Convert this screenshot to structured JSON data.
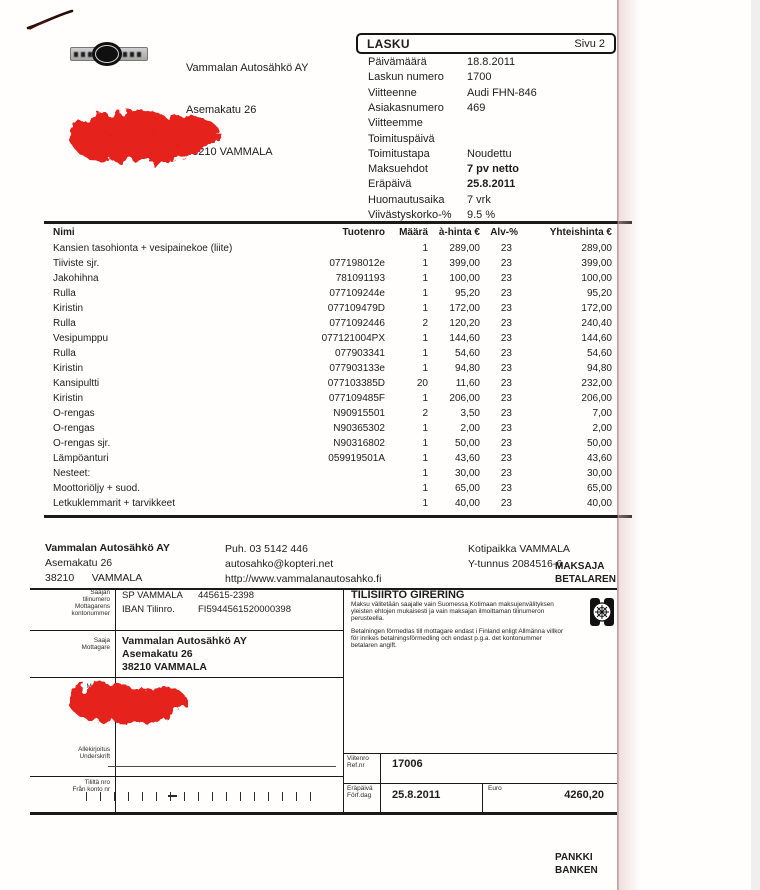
{
  "header": {
    "title": "LASKU",
    "page": "Sivu 2"
  },
  "sender": {
    "name": "Vammalan Autosähkö AY",
    "street": "Asemakatu 26",
    "city": "38210 VAMMALA"
  },
  "invoice_meta": [
    {
      "label": "Päivämäärä",
      "value": "18.8.2011",
      "bold": false
    },
    {
      "label": "Laskun numero",
      "value": "1700",
      "bold": false
    },
    {
      "label": "Viitteenne",
      "value": "Audi FHN-846",
      "bold": false
    },
    {
      "label": "Asiakasnumero",
      "value": "469",
      "bold": false
    },
    {
      "label": "Viitteemme",
      "value": "",
      "bold": false
    },
    {
      "label": "Toimituspäivä",
      "value": "",
      "bold": false
    },
    {
      "label": "Toimitustapa",
      "value": "Noudettu",
      "bold": false
    },
    {
      "label": "Maksuehdot",
      "value": "7 pv netto",
      "bold": true
    },
    {
      "label": "Eräpäivä",
      "value": "25.8.2011",
      "bold": true
    },
    {
      "label": "Huomautusaika",
      "value": "7 vrk",
      "bold": false
    },
    {
      "label": "Viivästyskorko-%",
      "value": "9.5 %",
      "bold": false
    }
  ],
  "table": {
    "headers": [
      "Nimi",
      "Tuotenro",
      "Määrä",
      "à-hinta €",
      "Alv-%",
      "Yhteishinta €"
    ],
    "rows": [
      {
        "name": "Kansien tasohionta + vesipainekoe (liite)",
        "tuotenro": "",
        "maara": "1",
        "ahinta": "289,00",
        "alv": "23",
        "yht": "289,00"
      },
      {
        "name": "Tiiviste sjr.",
        "tuotenro": "077198012e",
        "maara": "1",
        "ahinta": "399,00",
        "alv": "23",
        "yht": "399,00"
      },
      {
        "name": "Jakohihna",
        "tuotenro": "781091193",
        "maara": "1",
        "ahinta": "100,00",
        "alv": "23",
        "yht": "100,00"
      },
      {
        "name": "Rulla",
        "tuotenro": "077109244e",
        "maara": "1",
        "ahinta": "95,20",
        "alv": "23",
        "yht": "95,20"
      },
      {
        "name": "Kiristin",
        "tuotenro": "077109479D",
        "maara": "1",
        "ahinta": "172,00",
        "alv": "23",
        "yht": "172,00"
      },
      {
        "name": "Rulla",
        "tuotenro": "0771092446",
        "maara": "2",
        "ahinta": "120,20",
        "alv": "23",
        "yht": "240,40"
      },
      {
        "name": "Vesipumppu",
        "tuotenro": "077121004PX",
        "maara": "1",
        "ahinta": "144,60",
        "alv": "23",
        "yht": "144,60"
      },
      {
        "name": "Rulla",
        "tuotenro": "077903341",
        "maara": "1",
        "ahinta": "54,60",
        "alv": "23",
        "yht": "54,60"
      },
      {
        "name": "Kiristin",
        "tuotenro": "077903133e",
        "maara": "1",
        "ahinta": "94,80",
        "alv": "23",
        "yht": "94,80"
      },
      {
        "name": "Kansipultti",
        "tuotenro": "077103385D",
        "maara": "20",
        "ahinta": "11,60",
        "alv": "23",
        "yht": "232,00"
      },
      {
        "name": "Kiristin",
        "tuotenro": "077109485F",
        "maara": "1",
        "ahinta": "206,00",
        "alv": "23",
        "yht": "206,00"
      },
      {
        "name": "O-rengas",
        "tuotenro": "N90915501",
        "maara": "2",
        "ahinta": "3,50",
        "alv": "23",
        "yht": "7,00"
      },
      {
        "name": "O-rengas",
        "tuotenro": "N90365302",
        "maara": "1",
        "ahinta": "2,00",
        "alv": "23",
        "yht": "2,00"
      },
      {
        "name": "O-rengas sjr.",
        "tuotenro": "N90316802",
        "maara": "1",
        "ahinta": "50,00",
        "alv": "23",
        "yht": "50,00"
      },
      {
        "name": "Lämpöanturi",
        "tuotenro": "059919501A",
        "maara": "1",
        "ahinta": "43,60",
        "alv": "23",
        "yht": "43,60"
      },
      {
        "name": "Nesteet:",
        "tuotenro": "",
        "maara": "1",
        "ahinta": "30,00",
        "alv": "23",
        "yht": "30,00"
      },
      {
        "name": "Moottoriöljy + suod.",
        "tuotenro": "",
        "maara": "1",
        "ahinta": "65,00",
        "alv": "23",
        "yht": "65,00"
      },
      {
        "name": "Letkuklemmarit + tarvikkeet",
        "tuotenro": "",
        "maara": "1",
        "ahinta": "40,00",
        "alv": "23",
        "yht": "40,00"
      }
    ]
  },
  "footer": {
    "company": [
      "Vammalan Autosähkö AY",
      "Asemakatu 26",
      "38210      VAMMALA"
    ],
    "contact": [
      "Puh. 03 5142 446",
      "autosahko@kopteri.net",
      "http://www.vammalanautosahko.fi"
    ],
    "registry": [
      "Kotipaikka VAMMALA",
      "Y-tunnus 2084516-6"
    ],
    "payer_heading": [
      "MAKSAJA",
      "BETALAREN"
    ]
  },
  "giro": {
    "labels": {
      "account": [
        "Saajan",
        "tilinumero",
        "Mottagarens",
        "kontonummer"
      ],
      "recipient": [
        "Saaja",
        "Mottagare"
      ],
      "payer": [
        "Maksaja",
        "Betalare"
      ],
      "signature": [
        "Allekirjoitus",
        "Underskrift"
      ],
      "from_account": [
        "Tililtä nro",
        "Från konto nr"
      ]
    },
    "account": {
      "bank": "SP VAMMALA",
      "number": "445615-2398",
      "iban_label": "IBAN Tilinro.",
      "iban": "FI5944561520000398"
    },
    "recipient_lines": [
      "Vammalan Autosähkö AY",
      "Asemakatu 26",
      "38210 VAMMALA"
    ],
    "tilisiirto_title": "TILISIIRTO GIRERING",
    "fi_text": "Maksu välitetään saajalle vain Suomessa Kotimaan maksujenvälityksen yleisten ehtojen mukaisesti ja vain maksajan ilmoittaman tilinumeron perusteella.",
    "sv_text": "Betalningen förmedlas till mottagare endast i Finland enligt Allmänna villkor för inrikes betalningsförmedling och endast p.g.a. det kontonummer betalaren angift.",
    "ref_label": [
      "Viitenro",
      "Ref.nr"
    ],
    "ref_value": "17006",
    "due_label": [
      "Eräpäivä",
      "Förf.dag"
    ],
    "due_value": "25.8.2011",
    "euro_label": "Euro",
    "euro_value": "4260,20",
    "bank_footer": [
      "PANKKI",
      "BANKEN"
    ]
  },
  "colors": {
    "redaction": "#e6201a",
    "ink": "#1a1a1a"
  }
}
